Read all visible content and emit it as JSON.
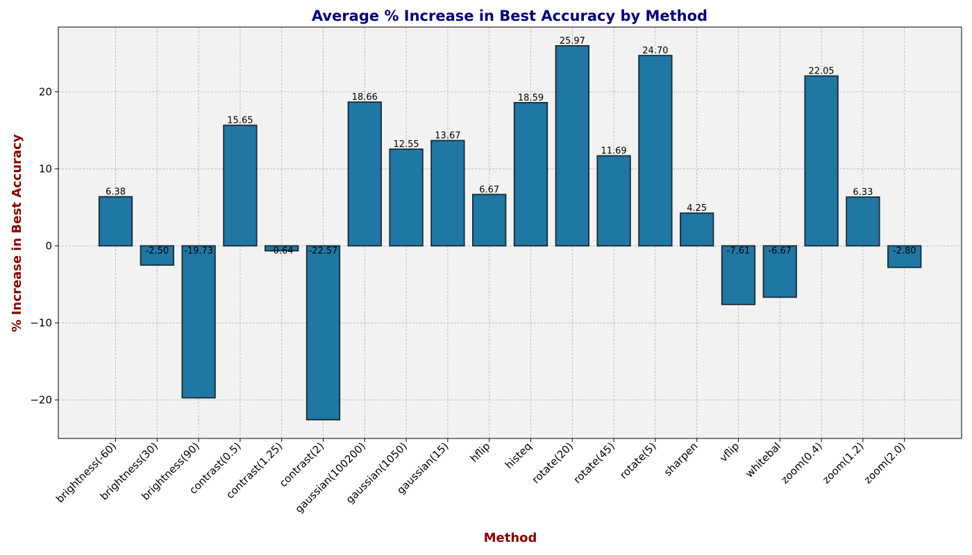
{
  "chart_data": {
    "type": "bar",
    "title": "Average % Increase in Best Accuracy by Method",
    "xlabel": "Method",
    "ylabel": "% Increase in Best Accuracy",
    "categories": [
      "brightness(-60)",
      "brightness(30)",
      "brightness(90)",
      "contrast(0.5)",
      "contrast(1.25)",
      "contrast(2)",
      "gaussian(100200)",
      "gaussian(1050)",
      "gaussian(15)",
      "hflip",
      "histeq",
      "rotate(20)",
      "rotate(45)",
      "rotate(5)",
      "sharpen",
      "vflip",
      "whitebal",
      "zoom(0.4)",
      "zoom(1.2)",
      "zoom(2.0)"
    ],
    "values": [
      6.38,
      -2.5,
      -19.73,
      15.65,
      -0.64,
      -22.57,
      18.66,
      12.55,
      13.67,
      6.67,
      18.59,
      25.97,
      11.69,
      24.7,
      4.25,
      -7.61,
      -6.67,
      22.05,
      6.33,
      -2.8
    ],
    "value_labels": [
      "6.38",
      "-2.50",
      "-19.73",
      "15.65",
      "-0.64",
      "-22.57",
      "18.66",
      "12.55",
      "13.67",
      "6.67",
      "18.59",
      "25.97",
      "11.69",
      "24.70",
      "4.25",
      "-7.61",
      "-6.67",
      "22.05",
      "6.33",
      "-2.80"
    ],
    "ylim": [
      -25,
      28.4
    ],
    "yticks": [
      -20,
      -10,
      0,
      10,
      20
    ],
    "ytick_labels": [
      "−20",
      "−10",
      "0",
      "10",
      "20"
    ],
    "grid": true,
    "colors": {
      "bar": "#1f77a4",
      "plot_background": "#f2f2f2",
      "title": "#000080",
      "axis_label": "#8b0000"
    }
  }
}
